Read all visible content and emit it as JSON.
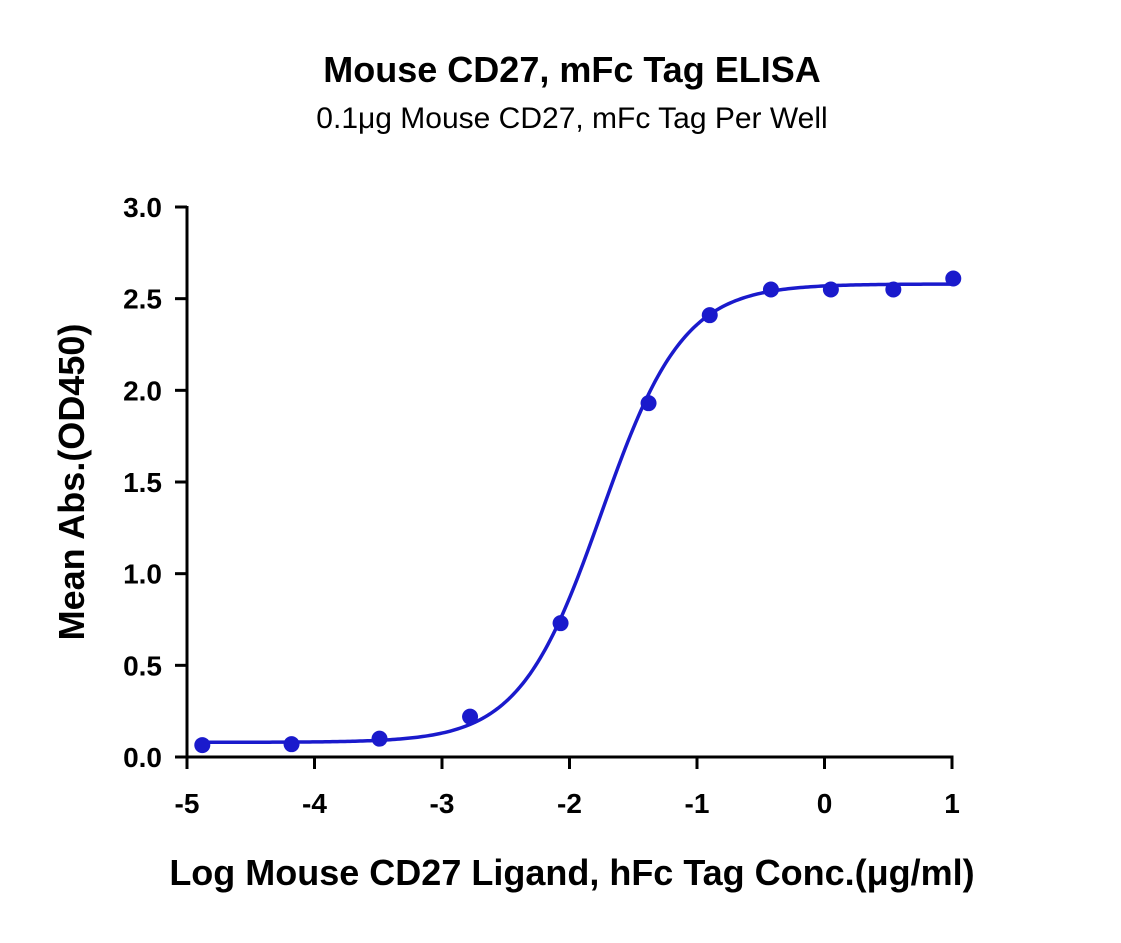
{
  "chart_data": {
    "type": "scatter",
    "title": "Mouse CD27, mFc Tag ELISA",
    "subtitle": "0.1μg Mouse CD27, mFc Tag Per Well",
    "xlabel": "Log Mouse CD27 Ligand, hFc Tag Conc.(μg/ml)",
    "ylabel": "Mean Abs.(OD450)",
    "xlim": [
      -5,
      1
    ],
    "ylim": [
      0,
      3.0
    ],
    "xticks": [
      "-5",
      "-4",
      "-3",
      "-2",
      "-1",
      "0",
      "1"
    ],
    "yticks": [
      "0.0",
      "0.5",
      "1.0",
      "1.5",
      "2.0",
      "2.5",
      "3.0"
    ],
    "grid": false,
    "color": "#1a1acc",
    "series": [
      {
        "x": [
          -4.88,
          -4.18,
          -3.49,
          -2.78,
          -2.07,
          -1.38,
          -0.9,
          -0.42,
          0.05,
          0.54,
          1.01
        ],
        "y": [
          0.065,
          0.07,
          0.1,
          0.22,
          0.73,
          1.93,
          2.41,
          2.55,
          2.55,
          2.55,
          2.61
        ]
      }
    ],
    "fit": {
      "model": "4PL",
      "bottom": 0.08,
      "top": 2.58,
      "logEC50": -1.75,
      "hill": 1.35
    }
  }
}
